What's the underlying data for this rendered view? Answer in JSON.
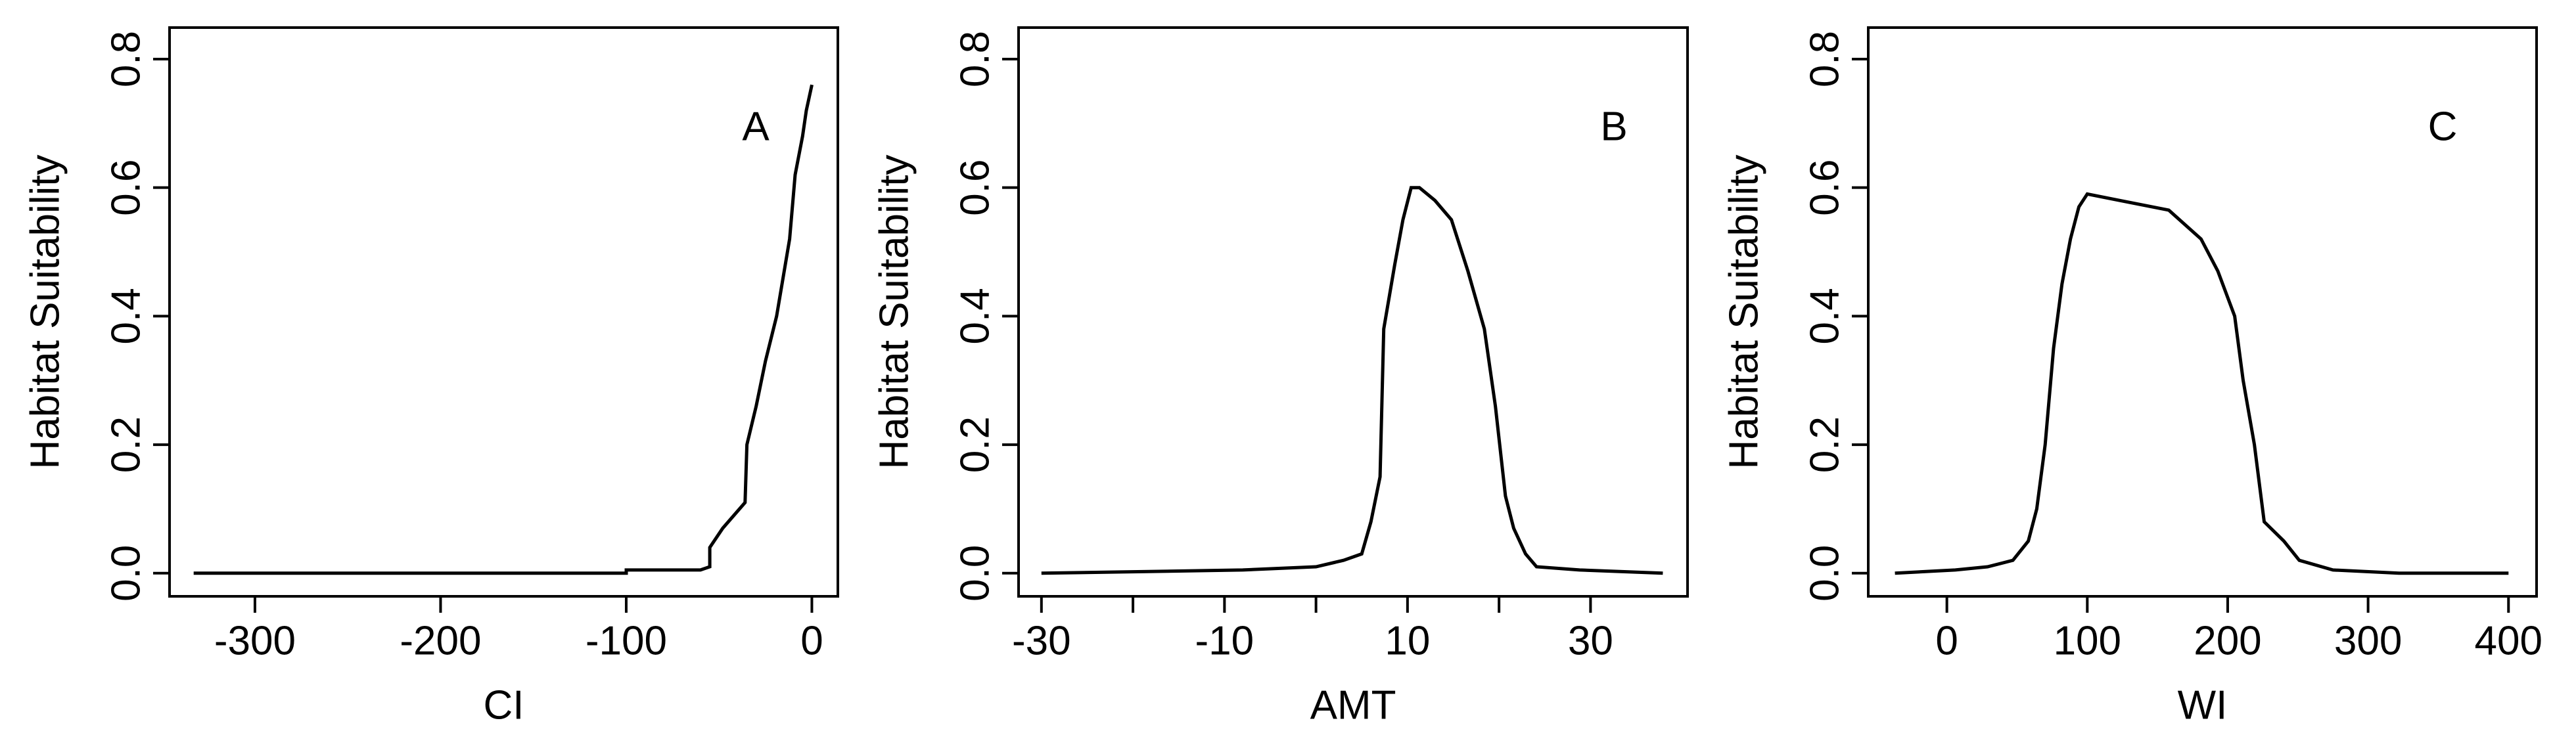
{
  "chart_data": [
    {
      "type": "line",
      "annotation": "A",
      "x_label": "CI",
      "y_label": "Habitat Suitability",
      "xlim": [
        -346,
        14
      ],
      "xticks": [
        -300,
        -200,
        -100,
        0
      ],
      "ylim": [
        -0.036,
        0.849
      ],
      "yticks": [
        {
          "value": 0,
          "label": "0.0"
        },
        0.2,
        0.4,
        0.6,
        0.8
      ],
      "color": "#000000",
      "x": [
        -333,
        -100,
        -100,
        -60,
        -55,
        -55,
        -48,
        -36,
        -35,
        -30,
        -25,
        -19,
        -12,
        -9,
        -5,
        -3,
        0
      ],
      "values": [
        0,
        0,
        0.005,
        0.005,
        0.01,
        0.04,
        0.07,
        0.11,
        0.2,
        0.26,
        0.33,
        0.4,
        0.52,
        0.62,
        0.68,
        0.72,
        0.76
      ]
    },
    {
      "type": "line",
      "annotation": "B",
      "x_label": "AMT",
      "y_label": "Habitat Suitability",
      "xlim": [
        -32.5,
        40.6
      ],
      "xticks": [
        -30,
        -10,
        10,
        30
      ],
      "xminorticks": [
        -20,
        0,
        20
      ],
      "ylim": [
        -0.036,
        0.849
      ],
      "yticks": [
        {
          "value": 0,
          "label": "0.0"
        },
        0.2,
        0.4,
        0.6,
        0.8
      ],
      "color": "#000000",
      "x": [
        -30,
        -8,
        0,
        3,
        5,
        6,
        7,
        7.4,
        8.6,
        9.5,
        10.4,
        11.3,
        13,
        14.8,
        16.6,
        18.4,
        19.6,
        20.7,
        21.6,
        22.9,
        24.1,
        28.8,
        37.9
      ],
      "values": [
        0,
        0.005,
        0.01,
        0.02,
        0.03,
        0.08,
        0.15,
        0.38,
        0.48,
        0.55,
        0.6,
        0.6,
        0.58,
        0.55,
        0.47,
        0.38,
        0.26,
        0.12,
        0.07,
        0.03,
        0.01,
        0.005,
        0
      ]
    },
    {
      "type": "line",
      "annotation": "C",
      "x_label": "WI",
      "y_label": "Habitat Suitability",
      "xlim": [
        -56,
        420
      ],
      "xticks": [
        0,
        100,
        200,
        300,
        400
      ],
      "ylim": [
        -0.036,
        0.849
      ],
      "yticks": [
        {
          "value": 0,
          "label": "0.0"
        },
        0.2,
        0.4,
        0.6,
        0.8
      ],
      "color": "#000000",
      "x": [
        -37,
        6,
        29,
        47,
        58,
        64,
        70,
        76,
        82,
        88,
        94,
        100,
        123,
        158,
        181,
        193,
        205,
        211,
        219,
        226,
        240,
        251,
        275,
        322,
        400
      ],
      "values": [
        0,
        0.005,
        0.01,
        0.02,
        0.05,
        0.1,
        0.2,
        0.35,
        0.45,
        0.52,
        0.57,
        0.59,
        0.58,
        0.565,
        0.52,
        0.47,
        0.4,
        0.3,
        0.2,
        0.08,
        0.05,
        0.02,
        0.005,
        0,
        0
      ]
    }
  ]
}
